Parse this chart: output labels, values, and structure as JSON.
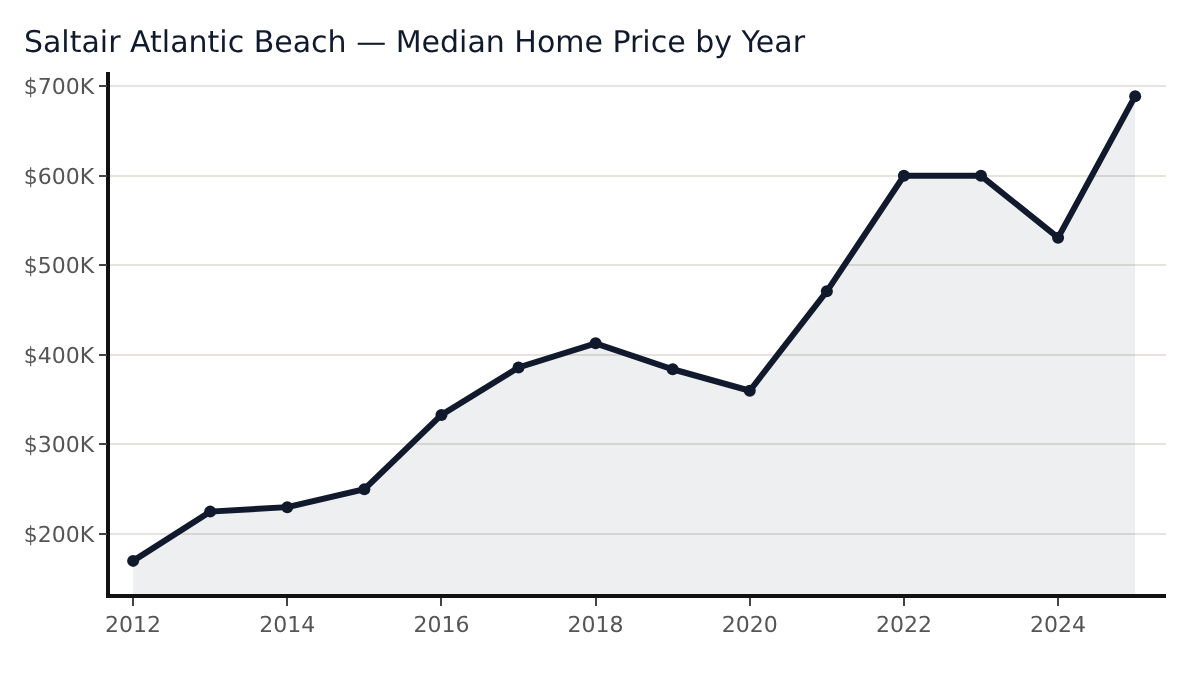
{
  "chart_data": {
    "type": "area",
    "title": "Saltair Atlantic Beach — Median Home Price by Year",
    "x": [
      2012,
      2013,
      2014,
      2015,
      2016,
      2017,
      2018,
      2019,
      2020,
      2021,
      2022,
      2023,
      2024,
      2025
    ],
    "series": [
      {
        "color": "#111a2c",
        "values": [
          170000,
          225000,
          230000,
          250000,
          333000,
          386000,
          413000,
          384000,
          360000,
          471000,
          600000,
          600000,
          531000,
          689000
        ]
      }
    ],
    "xlim": [
      2011.7,
      2025.4
    ],
    "xticks": [
      2012,
      2014,
      2016,
      2018,
      2020,
      2022,
      2024
    ],
    "ylim": [
      133000,
      716000
    ],
    "yticks": [
      {
        "value": 200000,
        "label": "$200K"
      },
      {
        "value": 300000,
        "label": "$300K"
      },
      {
        "value": 400000,
        "label": "$400K"
      },
      {
        "value": 500000,
        "label": "$500K"
      },
      {
        "value": 600000,
        "label": "$600K"
      },
      {
        "value": 700000,
        "label": "$700K"
      }
    ],
    "grid": "y",
    "legend": false,
    "marker": "circle",
    "line_style": "solid"
  }
}
